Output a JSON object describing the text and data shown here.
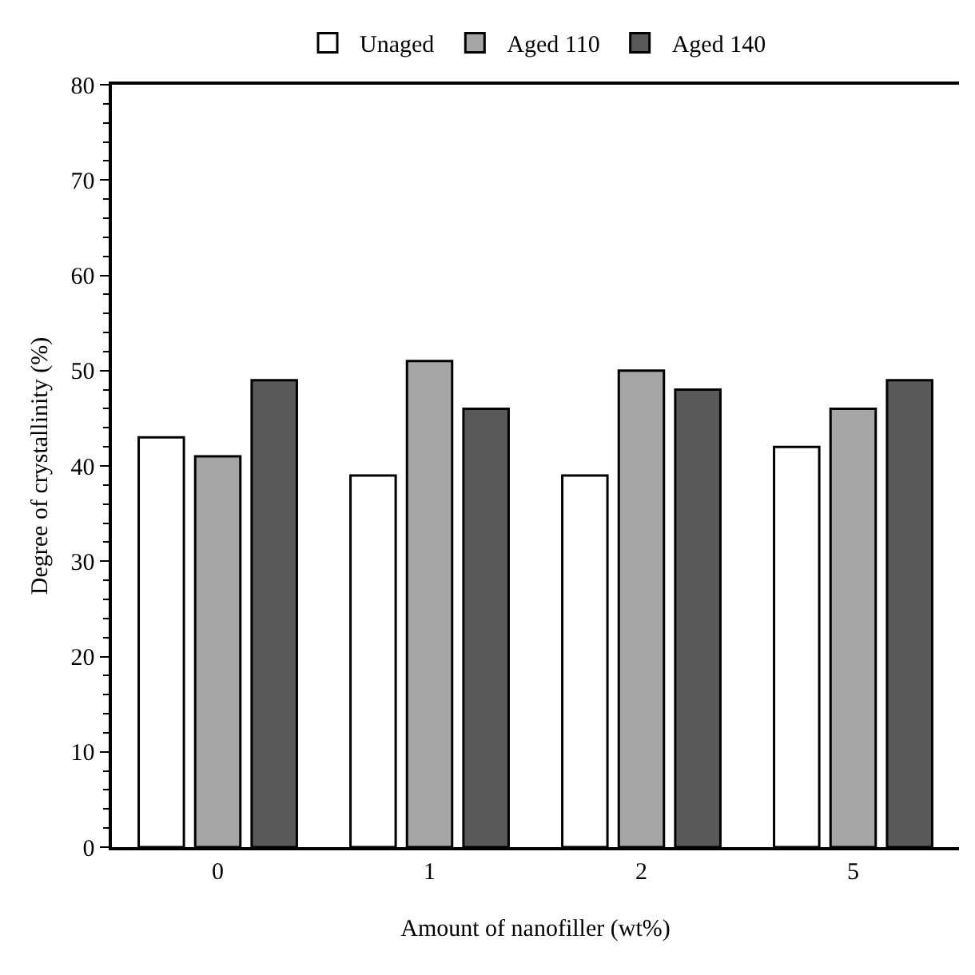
{
  "chart_data": {
    "type": "bar",
    "xlabel": "Amount of nanofiller (wt%)",
    "ylabel": "Degree of crystallinity (%)",
    "categories": [
      "0",
      "1",
      "2",
      "5"
    ],
    "series": [
      {
        "name": "Unaged",
        "color": "#ffffff",
        "values": [
          43,
          39,
          39,
          42
        ]
      },
      {
        "name": "Aged 110",
        "color": "#a6a6a6",
        "values": [
          41,
          51,
          50,
          46
        ]
      },
      {
        "name": "Aged 140",
        "color": "#595959",
        "values": [
          49,
          46,
          48,
          49
        ]
      }
    ],
    "ylim": [
      0,
      80
    ],
    "yticks": [
      0,
      10,
      20,
      30,
      40,
      50,
      60,
      70,
      80
    ],
    "grid": false,
    "legend": "top"
  }
}
